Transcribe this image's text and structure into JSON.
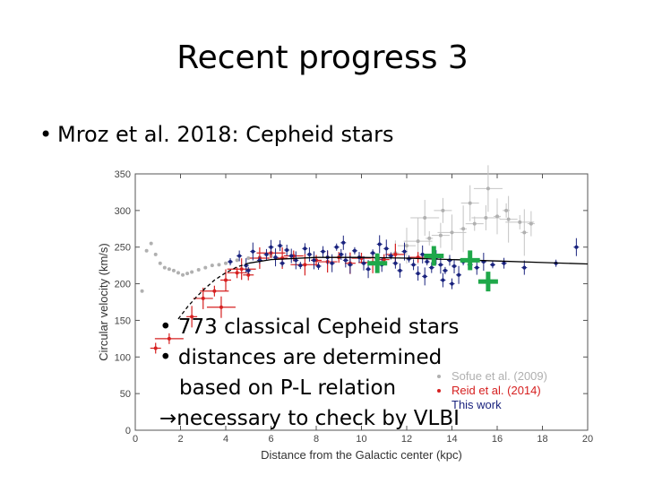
{
  "slide": {
    "title": "Recent progress 3",
    "bullet": "Mroz et al. 2018: Cepheid stars",
    "bullet_marker": "•",
    "overlay_lines": [
      {
        "marker": "•",
        "text": "773 classical Cepheid stars"
      },
      {
        "marker": "•",
        "text": "distances are determined"
      },
      {
        "marker": "",
        "text": "based on P-L relation"
      },
      {
        "marker": "",
        "text": "→necessary to check by VLBI"
      }
    ]
  },
  "chart_data": {
    "type": "scatter",
    "xlabel": "Distance from the Galactic center (kpc)",
    "ylabel": "Circular velocity (km/s)",
    "xlim": [
      0,
      20
    ],
    "ylim": [
      0,
      350
    ],
    "xticks": [
      0,
      2,
      4,
      6,
      8,
      10,
      12,
      14,
      16,
      18,
      20
    ],
    "yticks": [
      0,
      50,
      100,
      150,
      200,
      250,
      300,
      350
    ],
    "legend": {
      "placement": "bottom-right",
      "entries": [
        {
          "name": "Sofue et al. (2009)",
          "color": "#b0b0b0"
        },
        {
          "name": "Reid et al. (2014)",
          "color": "#d62020"
        },
        {
          "name": "This work",
          "color": "#1a237e"
        }
      ]
    },
    "colors": {
      "sofue": "#b0b0b0",
      "reid": "#d62020",
      "mroz": "#1a237e",
      "vlbi_cross": "#1fa84a",
      "curve": "#000000"
    },
    "series": [
      {
        "name": "Sofue et al. (2009)",
        "points": [
          [
            0.3,
            190
          ],
          [
            0.5,
            245
          ],
          [
            0.7,
            255
          ],
          [
            0.9,
            240
          ],
          [
            1.1,
            228
          ],
          [
            1.3,
            222
          ],
          [
            1.5,
            220
          ],
          [
            1.7,
            218
          ],
          [
            1.9,
            215
          ],
          [
            2.1,
            212
          ],
          [
            2.3,
            214
          ],
          [
            2.5,
            216
          ],
          [
            2.8,
            219
          ],
          [
            3.1,
            222
          ],
          [
            3.4,
            225
          ],
          [
            3.7,
            226
          ],
          [
            4.0,
            228
          ],
          [
            4.5,
            232
          ],
          [
            5.0,
            235
          ],
          [
            5.5,
            236
          ],
          [
            6.0,
            238
          ],
          [
            11.5,
            242
          ],
          [
            12.0,
            252
          ],
          [
            12.5,
            258
          ],
          [
            13.0,
            262
          ],
          [
            13.5,
            266
          ],
          [
            14.0,
            270
          ],
          [
            14.5,
            275
          ],
          [
            15.0,
            282
          ],
          [
            15.5,
            290
          ],
          [
            16.0,
            292
          ],
          [
            16.5,
            288
          ],
          [
            17.0,
            284
          ],
          [
            17.5,
            282
          ],
          [
            14.8,
            310
          ],
          [
            15.6,
            330
          ],
          [
            16.4,
            300
          ],
          [
            13.6,
            300
          ],
          [
            12.8,
            290
          ],
          [
            17.2,
            270
          ]
        ]
      },
      {
        "name": "Reid et al. (2014)",
        "points": [
          [
            0.9,
            112
          ],
          [
            3.0,
            180
          ],
          [
            3.5,
            190
          ],
          [
            4.0,
            205
          ],
          [
            4.5,
            215
          ],
          [
            4.7,
            220
          ],
          [
            5.0,
            212
          ],
          [
            5.5,
            235
          ],
          [
            6.0,
            242
          ],
          [
            6.5,
            235
          ],
          [
            7.0,
            238
          ],
          [
            7.5,
            226
          ],
          [
            8.0,
            232
          ],
          [
            8.5,
            230
          ],
          [
            9.0,
            236
          ],
          [
            9.5,
            228
          ],
          [
            10.0,
            235
          ],
          [
            10.5,
            229
          ],
          [
            11.0,
            233
          ],
          [
            11.5,
            240
          ],
          [
            1.5,
            125
          ],
          [
            2.5,
            155
          ],
          [
            12.5,
            236
          ],
          [
            3.8,
            168
          ]
        ]
      },
      {
        "name": "This work",
        "points": [
          [
            4.2,
            230
          ],
          [
            4.6,
            238
          ],
          [
            4.9,
            225
          ],
          [
            5.2,
            244
          ],
          [
            5.5,
            232
          ],
          [
            5.8,
            240
          ],
          [
            6.0,
            250
          ],
          [
            6.2,
            236
          ],
          [
            6.5,
            228
          ],
          [
            6.7,
            246
          ],
          [
            6.9,
            238
          ],
          [
            7.1,
            232
          ],
          [
            7.3,
            225
          ],
          [
            7.5,
            248
          ],
          [
            7.7,
            240
          ],
          [
            7.9,
            232
          ],
          [
            8.1,
            224
          ],
          [
            8.3,
            244
          ],
          [
            8.5,
            236
          ],
          [
            8.7,
            228
          ],
          [
            8.9,
            250
          ],
          [
            9.1,
            240
          ],
          [
            9.3,
            232
          ],
          [
            9.5,
            226
          ],
          [
            9.7,
            245
          ],
          [
            9.9,
            236
          ],
          [
            10.1,
            228
          ],
          [
            10.3,
            220
          ],
          [
            10.5,
            242
          ],
          [
            10.7,
            234
          ],
          [
            10.9,
            226
          ],
          [
            11.1,
            248
          ],
          [
            11.3,
            238
          ],
          [
            11.5,
            228
          ],
          [
            11.7,
            218
          ],
          [
            11.9,
            244
          ],
          [
            12.1,
            234
          ],
          [
            12.3,
            226
          ],
          [
            12.5,
            214
          ],
          [
            12.7,
            240
          ],
          [
            12.9,
            230
          ],
          [
            13.1,
            222
          ],
          [
            13.3,
            236
          ],
          [
            13.5,
            226
          ],
          [
            13.7,
            218
          ],
          [
            13.9,
            232
          ],
          [
            14.1,
            224
          ],
          [
            14.3,
            212
          ],
          [
            14.5,
            230
          ],
          [
            14.8,
            226
          ],
          [
            15.1,
            222
          ],
          [
            15.4,
            230
          ],
          [
            15.8,
            226
          ],
          [
            16.3,
            228
          ],
          [
            17.2,
            222
          ],
          [
            19.5,
            250
          ],
          [
            18.6,
            228
          ],
          [
            14.0,
            200
          ],
          [
            13.6,
            205
          ],
          [
            12.8,
            210
          ],
          [
            5.0,
            218
          ],
          [
            6.4,
            252
          ],
          [
            9.2,
            256
          ],
          [
            10.8,
            254
          ]
        ]
      },
      {
        "name": "VLBI",
        "points": [
          [
            10.7,
            228
          ],
          [
            13.2,
            238
          ],
          [
            14.8,
            232
          ],
          [
            15.6,
            203
          ]
        ]
      },
      {
        "name": "Rotation curve",
        "points": [
          [
            1.9,
            152
          ],
          [
            2.3,
            168
          ],
          [
            2.7,
            182
          ],
          [
            3.1,
            194
          ],
          [
            3.5,
            205
          ],
          [
            4.0,
            215
          ],
          [
            4.5,
            223
          ],
          [
            5.0,
            228
          ],
          [
            6.0,
            233
          ],
          [
            8.0,
            236
          ],
          [
            10.0,
            236
          ],
          [
            12.0,
            235
          ],
          [
            14.0,
            233
          ],
          [
            16.0,
            231
          ],
          [
            18.0,
            229
          ],
          [
            20.0,
            227
          ]
        ]
      }
    ]
  }
}
